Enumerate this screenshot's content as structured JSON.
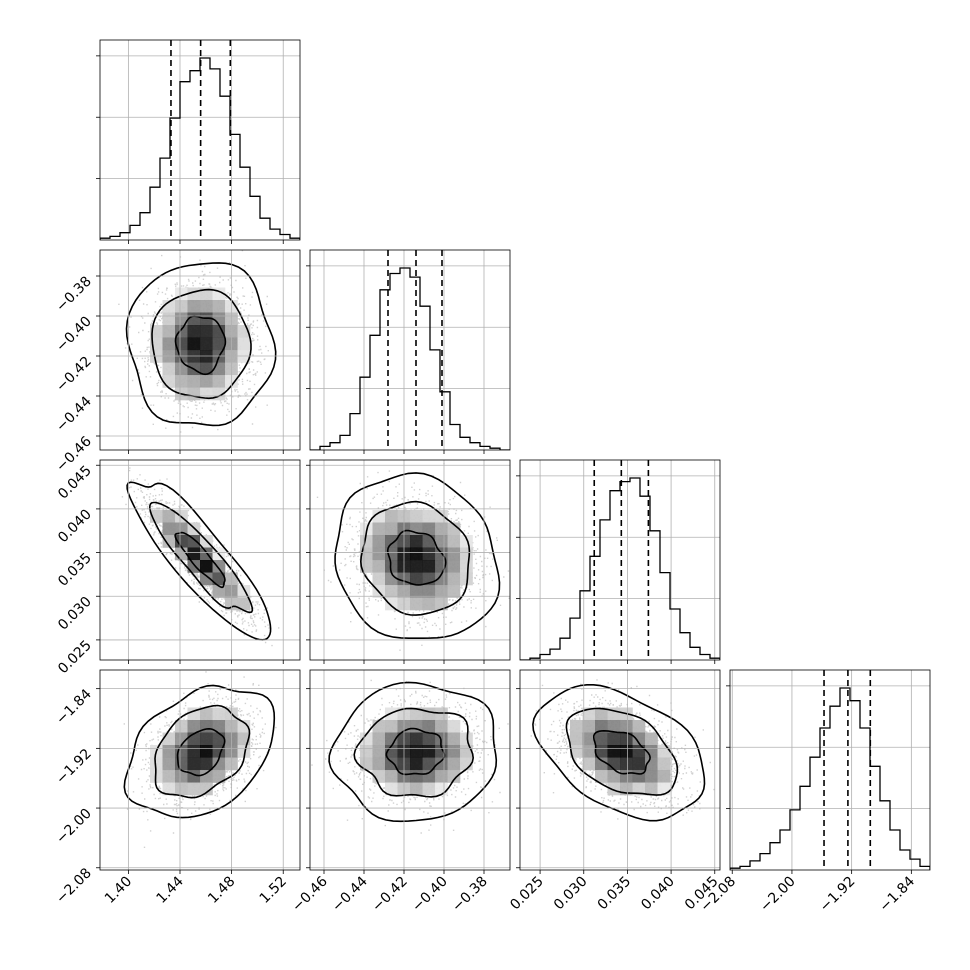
{
  "chart_data": {
    "type": "corner",
    "title": "",
    "grid": true,
    "contour_levels": [
      0.393,
      0.865,
      0.989
    ],
    "parameters": [
      {
        "label": "",
        "mean": 1.456,
        "sd": 0.0185,
        "range": [
          1.378,
          1.533
        ],
        "ticks": [
          1.4,
          1.44,
          1.48,
          1.52
        ],
        "tick_labels": [
          "1.40",
          "1.44",
          "1.48",
          "1.52"
        ],
        "quantiles": [
          1.433,
          1.456,
          1.479
        ]
      },
      {
        "label": "",
        "mean": -0.414,
        "sd": 0.014,
        "range": [
          -0.467,
          -0.367
        ],
        "ticks": [
          -0.46,
          -0.44,
          -0.42,
          -0.4,
          -0.38
        ],
        "tick_labels": [
          "−0.46",
          "−0.44",
          "−0.42",
          "−0.40",
          "−0.38"
        ],
        "quantiles": [
          -0.428,
          -0.414,
          -0.401
        ]
      },
      {
        "label": "",
        "mean": 0.0343,
        "sd": 0.0031,
        "range": [
          0.0227,
          0.0456
        ],
        "ticks": [
          0.025,
          0.03,
          0.035,
          0.04,
          0.045
        ],
        "tick_labels": [
          "0.025",
          "0.030",
          "0.035",
          "0.040",
          "0.045"
        ],
        "quantiles": [
          0.0312,
          0.0343,
          0.0374
        ]
      },
      {
        "label": "",
        "mean": -1.925,
        "sd": 0.03,
        "range": [
          -2.083,
          -1.815
        ],
        "ticks": [
          -2.08,
          -2.0,
          -1.92,
          -1.84
        ],
        "tick_labels": [
          "−2.08",
          "−2.00",
          "−1.92",
          "−1.84"
        ],
        "quantiles": [
          -1.957,
          -1.925,
          -1.895
        ]
      }
    ],
    "correlations": [
      {
        "pair": [
          1,
          0
        ],
        "rho": 0.0
      },
      {
        "pair": [
          2,
          0
        ],
        "rho": -0.88
      },
      {
        "pair": [
          2,
          1
        ],
        "rho": -0.12
      },
      {
        "pair": [
          3,
          0
        ],
        "rho": 0.32
      },
      {
        "pair": [
          3,
          1
        ],
        "rho": 0.05
      },
      {
        "pair": [
          3,
          2
        ],
        "rho": -0.38
      }
    ],
    "histograms": [
      {
        "param": 0,
        "bins": 20,
        "counts": [
          0.01,
          0.02,
          0.04,
          0.08,
          0.15,
          0.29,
          0.45,
          0.67,
          0.87,
          0.93,
          1.0,
          0.94,
          0.79,
          0.58,
          0.4,
          0.24,
          0.12,
          0.06,
          0.03,
          0.01
        ]
      },
      {
        "param": 1,
        "bins": 20,
        "counts": [
          0.0,
          0.02,
          0.04,
          0.08,
          0.2,
          0.4,
          0.63,
          0.88,
          0.97,
          1.0,
          0.95,
          0.79,
          0.55,
          0.32,
          0.14,
          0.07,
          0.04,
          0.02,
          0.01,
          0.0
        ]
      },
      {
        "param": 2,
        "bins": 20,
        "counts": [
          0.0,
          0.01,
          0.03,
          0.06,
          0.12,
          0.23,
          0.38,
          0.57,
          0.77,
          0.93,
          0.98,
          1.0,
          0.9,
          0.71,
          0.48,
          0.28,
          0.15,
          0.07,
          0.03,
          0.01
        ]
      },
      {
        "param": 3,
        "bins": 20,
        "counts": [
          0.01,
          0.02,
          0.05,
          0.09,
          0.15,
          0.22,
          0.33,
          0.46,
          0.62,
          0.78,
          0.9,
          1.0,
          0.93,
          0.78,
          0.57,
          0.38,
          0.22,
          0.11,
          0.06,
          0.02
        ]
      }
    ]
  }
}
